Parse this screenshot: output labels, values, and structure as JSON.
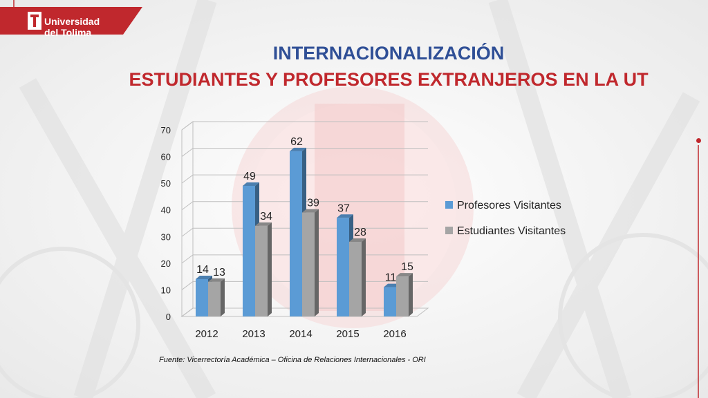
{
  "brand": {
    "line1": "Universidad",
    "line2": "del Tolima",
    "color": "#c0282d"
  },
  "slide": {
    "title": "INTERNACIONALIZACIÓN",
    "subtitle": "ESTUDIANTES Y PROFESORES EXTRANJEROS EN LA UT",
    "source": "Fuente: Vicerrectoría Académica – Oficina de Relaciones Internacionales -  ORI"
  },
  "chart_data": {
    "type": "bar",
    "categories": [
      "2012",
      "2013",
      "2014",
      "2015",
      "2016"
    ],
    "series": [
      {
        "name": "Profesores Visitantes",
        "values": [
          14,
          49,
          62,
          37,
          11
        ],
        "color": "#5b9bd5"
      },
      {
        "name": "Estudiantes Visitantes",
        "values": [
          13,
          34,
          39,
          28,
          15
        ],
        "color": "#a5a5a5"
      }
    ],
    "ylim": [
      0,
      70
    ],
    "yticks": [
      0,
      10,
      20,
      30,
      40,
      50,
      60,
      70
    ],
    "grid": true,
    "legend": "right",
    "data_labels": true,
    "style": "3d-clustered-column"
  }
}
